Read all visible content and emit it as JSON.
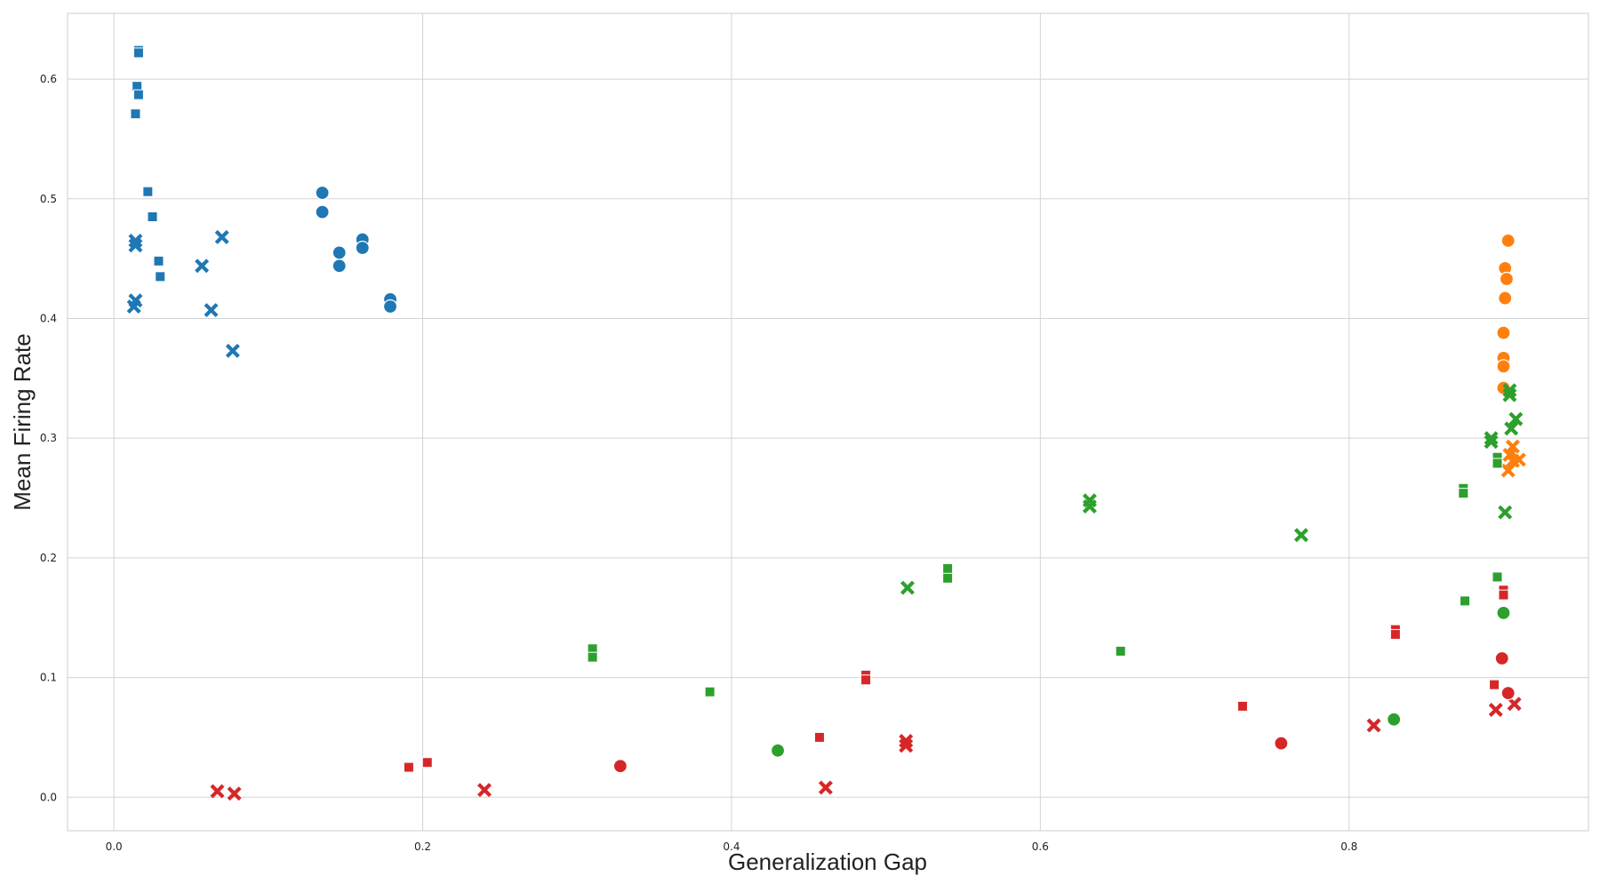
{
  "chart_data": {
    "type": "scatter",
    "title": "",
    "xlabel": "Generalization Gap",
    "ylabel": "Mean Firing Rate",
    "xlim": [
      -0.03,
      0.955
    ],
    "ylim": [
      -0.028,
      0.655
    ],
    "xticks": [
      0.0,
      0.2,
      0.4,
      0.6,
      0.8
    ],
    "yticks": [
      0.0,
      0.1,
      0.2,
      0.3,
      0.4,
      0.5,
      0.6
    ],
    "grid": true,
    "legend": "none",
    "colors": {
      "blue": "#1f77b4",
      "orange": "#ff7f0e",
      "green": "#2ca02c",
      "red": "#d62728"
    },
    "points": [
      {
        "x": 0.016,
        "y": 0.624,
        "color": "blue",
        "marker": "square"
      },
      {
        "x": 0.016,
        "y": 0.622,
        "color": "blue",
        "marker": "square"
      },
      {
        "x": 0.015,
        "y": 0.594,
        "color": "blue",
        "marker": "square"
      },
      {
        "x": 0.016,
        "y": 0.587,
        "color": "blue",
        "marker": "square"
      },
      {
        "x": 0.014,
        "y": 0.571,
        "color": "blue",
        "marker": "square"
      },
      {
        "x": 0.022,
        "y": 0.506,
        "color": "blue",
        "marker": "square"
      },
      {
        "x": 0.025,
        "y": 0.485,
        "color": "blue",
        "marker": "square"
      },
      {
        "x": 0.029,
        "y": 0.448,
        "color": "blue",
        "marker": "square"
      },
      {
        "x": 0.03,
        "y": 0.435,
        "color": "blue",
        "marker": "square"
      },
      {
        "x": 0.014,
        "y": 0.465,
        "color": "blue",
        "marker": "x"
      },
      {
        "x": 0.014,
        "y": 0.461,
        "color": "blue",
        "marker": "x"
      },
      {
        "x": 0.014,
        "y": 0.415,
        "color": "blue",
        "marker": "x"
      },
      {
        "x": 0.013,
        "y": 0.41,
        "color": "blue",
        "marker": "x"
      },
      {
        "x": 0.07,
        "y": 0.468,
        "color": "blue",
        "marker": "x"
      },
      {
        "x": 0.057,
        "y": 0.444,
        "color": "blue",
        "marker": "x"
      },
      {
        "x": 0.063,
        "y": 0.407,
        "color": "blue",
        "marker": "x"
      },
      {
        "x": 0.077,
        "y": 0.373,
        "color": "blue",
        "marker": "x"
      },
      {
        "x": 0.135,
        "y": 0.505,
        "color": "blue",
        "marker": "circle"
      },
      {
        "x": 0.135,
        "y": 0.489,
        "color": "blue",
        "marker": "circle"
      },
      {
        "x": 0.146,
        "y": 0.455,
        "color": "blue",
        "marker": "circle"
      },
      {
        "x": 0.146,
        "y": 0.444,
        "color": "blue",
        "marker": "circle"
      },
      {
        "x": 0.161,
        "y": 0.466,
        "color": "blue",
        "marker": "circle"
      },
      {
        "x": 0.161,
        "y": 0.459,
        "color": "blue",
        "marker": "circle"
      },
      {
        "x": 0.179,
        "y": 0.416,
        "color": "blue",
        "marker": "circle"
      },
      {
        "x": 0.179,
        "y": 0.41,
        "color": "blue",
        "marker": "circle"
      },
      {
        "x": 0.903,
        "y": 0.465,
        "color": "orange",
        "marker": "circle"
      },
      {
        "x": 0.901,
        "y": 0.442,
        "color": "orange",
        "marker": "circle"
      },
      {
        "x": 0.902,
        "y": 0.433,
        "color": "orange",
        "marker": "circle"
      },
      {
        "x": 0.901,
        "y": 0.417,
        "color": "orange",
        "marker": "circle"
      },
      {
        "x": 0.9,
        "y": 0.388,
        "color": "orange",
        "marker": "circle"
      },
      {
        "x": 0.9,
        "y": 0.367,
        "color": "orange",
        "marker": "circle"
      },
      {
        "x": 0.9,
        "y": 0.36,
        "color": "orange",
        "marker": "circle"
      },
      {
        "x": 0.9,
        "y": 0.342,
        "color": "orange",
        "marker": "circle"
      },
      {
        "x": 0.906,
        "y": 0.293,
        "color": "orange",
        "marker": "x"
      },
      {
        "x": 0.904,
        "y": 0.286,
        "color": "orange",
        "marker": "x"
      },
      {
        "x": 0.91,
        "y": 0.282,
        "color": "orange",
        "marker": "x"
      },
      {
        "x": 0.906,
        "y": 0.281,
        "color": "orange",
        "marker": "x"
      },
      {
        "x": 0.903,
        "y": 0.273,
        "color": "orange",
        "marker": "x"
      },
      {
        "x": 0.31,
        "y": 0.124,
        "color": "green",
        "marker": "square"
      },
      {
        "x": 0.31,
        "y": 0.117,
        "color": "green",
        "marker": "square"
      },
      {
        "x": 0.386,
        "y": 0.088,
        "color": "green",
        "marker": "square"
      },
      {
        "x": 0.54,
        "y": 0.191,
        "color": "green",
        "marker": "square"
      },
      {
        "x": 0.54,
        "y": 0.183,
        "color": "green",
        "marker": "square"
      },
      {
        "x": 0.652,
        "y": 0.122,
        "color": "green",
        "marker": "square"
      },
      {
        "x": 0.874,
        "y": 0.258,
        "color": "green",
        "marker": "square"
      },
      {
        "x": 0.874,
        "y": 0.254,
        "color": "green",
        "marker": "square"
      },
      {
        "x": 0.875,
        "y": 0.164,
        "color": "green",
        "marker": "square"
      },
      {
        "x": 0.896,
        "y": 0.284,
        "color": "green",
        "marker": "square"
      },
      {
        "x": 0.896,
        "y": 0.279,
        "color": "green",
        "marker": "square"
      },
      {
        "x": 0.896,
        "y": 0.184,
        "color": "green",
        "marker": "square"
      },
      {
        "x": 0.514,
        "y": 0.175,
        "color": "green",
        "marker": "x"
      },
      {
        "x": 0.632,
        "y": 0.248,
        "color": "green",
        "marker": "x"
      },
      {
        "x": 0.632,
        "y": 0.243,
        "color": "green",
        "marker": "x"
      },
      {
        "x": 0.769,
        "y": 0.219,
        "color": "green",
        "marker": "x"
      },
      {
        "x": 0.892,
        "y": 0.3,
        "color": "green",
        "marker": "x"
      },
      {
        "x": 0.892,
        "y": 0.297,
        "color": "green",
        "marker": "x"
      },
      {
        "x": 0.904,
        "y": 0.34,
        "color": "green",
        "marker": "x"
      },
      {
        "x": 0.904,
        "y": 0.336,
        "color": "green",
        "marker": "x"
      },
      {
        "x": 0.908,
        "y": 0.316,
        "color": "green",
        "marker": "x"
      },
      {
        "x": 0.905,
        "y": 0.308,
        "color": "green",
        "marker": "x"
      },
      {
        "x": 0.901,
        "y": 0.238,
        "color": "green",
        "marker": "x"
      },
      {
        "x": 0.43,
        "y": 0.039,
        "color": "green",
        "marker": "circle"
      },
      {
        "x": 0.829,
        "y": 0.065,
        "color": "green",
        "marker": "circle"
      },
      {
        "x": 0.9,
        "y": 0.154,
        "color": "green",
        "marker": "circle"
      },
      {
        "x": 0.191,
        "y": 0.025,
        "color": "red",
        "marker": "square"
      },
      {
        "x": 0.203,
        "y": 0.029,
        "color": "red",
        "marker": "square"
      },
      {
        "x": 0.457,
        "y": 0.05,
        "color": "red",
        "marker": "square"
      },
      {
        "x": 0.487,
        "y": 0.102,
        "color": "red",
        "marker": "square"
      },
      {
        "x": 0.487,
        "y": 0.098,
        "color": "red",
        "marker": "square"
      },
      {
        "x": 0.731,
        "y": 0.076,
        "color": "red",
        "marker": "square"
      },
      {
        "x": 0.83,
        "y": 0.14,
        "color": "red",
        "marker": "square"
      },
      {
        "x": 0.83,
        "y": 0.136,
        "color": "red",
        "marker": "square"
      },
      {
        "x": 0.9,
        "y": 0.173,
        "color": "red",
        "marker": "square"
      },
      {
        "x": 0.9,
        "y": 0.169,
        "color": "red",
        "marker": "square"
      },
      {
        "x": 0.894,
        "y": 0.094,
        "color": "red",
        "marker": "square"
      },
      {
        "x": 0.067,
        "y": 0.005,
        "color": "red",
        "marker": "x"
      },
      {
        "x": 0.078,
        "y": 0.003,
        "color": "red",
        "marker": "x"
      },
      {
        "x": 0.24,
        "y": 0.006,
        "color": "red",
        "marker": "x"
      },
      {
        "x": 0.461,
        "y": 0.008,
        "color": "red",
        "marker": "x"
      },
      {
        "x": 0.513,
        "y": 0.047,
        "color": "red",
        "marker": "x"
      },
      {
        "x": 0.513,
        "y": 0.043,
        "color": "red",
        "marker": "x"
      },
      {
        "x": 0.816,
        "y": 0.06,
        "color": "red",
        "marker": "x"
      },
      {
        "x": 0.895,
        "y": 0.073,
        "color": "red",
        "marker": "x"
      },
      {
        "x": 0.907,
        "y": 0.078,
        "color": "red",
        "marker": "x"
      },
      {
        "x": 0.328,
        "y": 0.026,
        "color": "red",
        "marker": "circle"
      },
      {
        "x": 0.756,
        "y": 0.045,
        "color": "red",
        "marker": "circle"
      },
      {
        "x": 0.899,
        "y": 0.116,
        "color": "red",
        "marker": "circle"
      },
      {
        "x": 0.903,
        "y": 0.087,
        "color": "red",
        "marker": "circle"
      }
    ]
  }
}
